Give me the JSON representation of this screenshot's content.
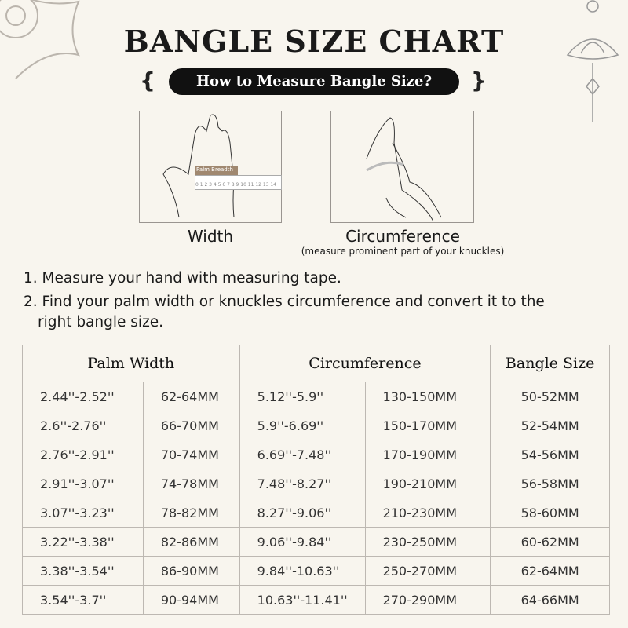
{
  "title": "BANGLE SIZE CHART",
  "subtitle": "How to Measure Bangle Size?",
  "illustrations": [
    {
      "label": "Width",
      "ruler_label": "Palm Breadth",
      "ruler_ticks": "0 1 2 3 4 5 6 7 8 9 10 11 12 13 14"
    },
    {
      "label": "Circumference",
      "note": "(measure prominent part of your knuckles)"
    }
  ],
  "steps": [
    "1. Measure your hand with measuring tape.",
    "2. Find your palm width or knuckles circumference and convert it to the",
    "right bangle size."
  ],
  "table": {
    "headers": [
      "Palm Width",
      "Circumference",
      "Bangle Size"
    ],
    "rows": [
      [
        "2.44''-2.52''",
        "62-64MM",
        "5.12''-5.9''",
        "130-150MM",
        "50-52MM"
      ],
      [
        "2.6''-2.76''",
        "66-70MM",
        "5.9''-6.69''",
        "150-170MM",
        "52-54MM"
      ],
      [
        "2.76''-2.91''",
        "70-74MM",
        "6.69''-7.48''",
        "170-190MM",
        "54-56MM"
      ],
      [
        "2.91''-3.07''",
        "74-78MM",
        "7.48''-8.27''",
        "190-210MM",
        "56-58MM"
      ],
      [
        "3.07''-3.23''",
        "78-82MM",
        "8.27''-9.06''",
        "210-230MM",
        "58-60MM"
      ],
      [
        "3.22''-3.38''",
        "82-86MM",
        "9.06''-9.84''",
        "230-250MM",
        "60-62MM"
      ],
      [
        "3.38''-3.54''",
        "86-90MM",
        "9.84''-10.63''",
        "250-270MM",
        "62-64MM"
      ],
      [
        "3.54''-3.7''",
        "90-94MM",
        "10.63''-11.41''",
        "270-290MM",
        "64-66MM"
      ]
    ]
  }
}
